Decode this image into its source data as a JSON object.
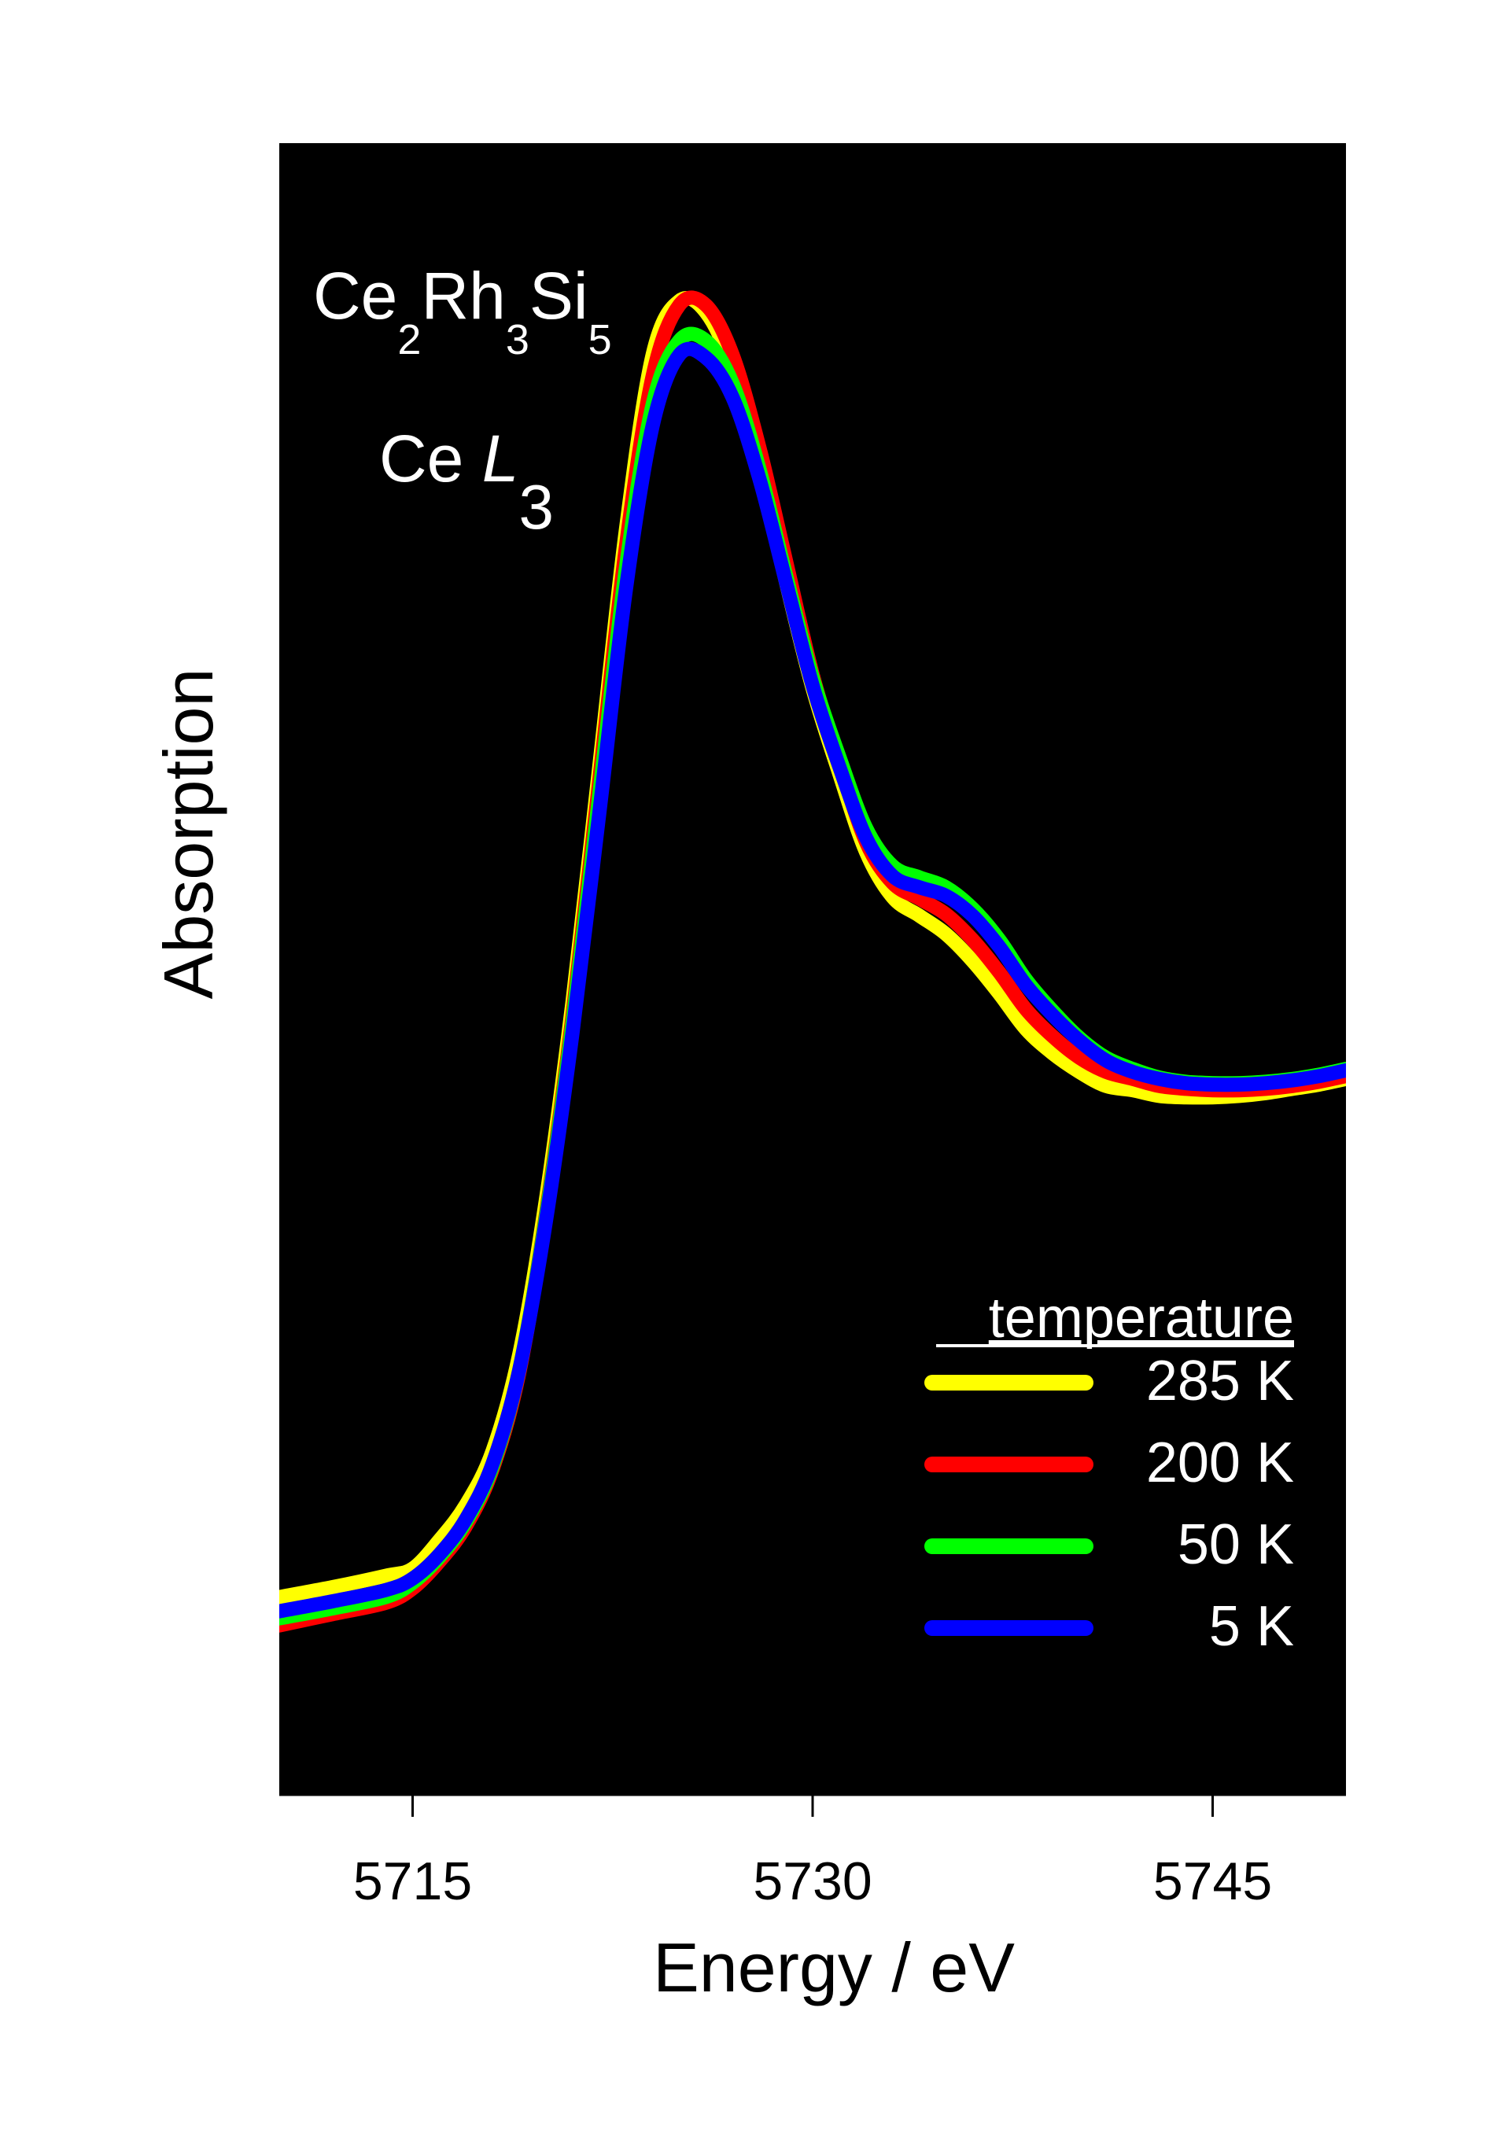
{
  "chart_data": {
    "type": "line",
    "title": "",
    "xlabel": "Energy / eV",
    "ylabel": "Absorption",
    "xlim": [
      5710,
      5750
    ],
    "ylim": [
      0,
      1
    ],
    "x_ticks": [
      5715,
      5730,
      5745
    ],
    "x_tick_labels": [
      "5715",
      "5730",
      "5745"
    ],
    "y_ticks": [],
    "plot_background": "#000000",
    "grid": false,
    "annotations": {
      "compound": {
        "base": [
          "Ce",
          "Rh",
          "Si"
        ],
        "subscripts": [
          "2",
          "3",
          "5"
        ]
      },
      "edge": {
        "element": "Ce",
        "shell": "L",
        "subscript": "3"
      }
    },
    "legend": {
      "title": "temperature",
      "placement": "bottom-right",
      "entries": [
        "285 K",
        "200 K",
        "50 K",
        "5 K"
      ]
    },
    "series": [
      {
        "name": "285 K",
        "color": "#ffff00",
        "x": [
          5710,
          5712,
          5714,
          5715,
          5716,
          5717,
          5718,
          5719,
          5720,
          5721,
          5722,
          5723,
          5724,
          5725,
          5726,
          5727,
          5728,
          5729,
          5730,
          5731,
          5732,
          5733,
          5734,
          5735,
          5736,
          5737,
          5738,
          5739,
          5740,
          5741,
          5742,
          5743,
          5744,
          5745,
          5746,
          5747,
          5748,
          5749,
          5750
        ],
        "y": [
          0.08,
          0.087,
          0.095,
          0.1,
          0.12,
          0.145,
          0.183,
          0.251,
          0.36,
          0.5,
          0.665,
          0.832,
          0.955,
          0.993,
          0.985,
          0.945,
          0.875,
          0.795,
          0.72,
          0.66,
          0.605,
          0.573,
          0.56,
          0.547,
          0.528,
          0.505,
          0.48,
          0.463,
          0.45,
          0.44,
          0.437,
          0.433,
          0.432,
          0.432,
          0.433,
          0.435,
          0.438,
          0.441,
          0.445
        ]
      },
      {
        "name": "200 K",
        "color": "#ff0000",
        "x": [
          5710,
          5712,
          5714,
          5715,
          5716,
          5717,
          5718,
          5719,
          5720,
          5721,
          5722,
          5723,
          5724,
          5725,
          5726,
          5727,
          5728,
          5729,
          5730,
          5731,
          5732,
          5733,
          5734,
          5735,
          5736,
          5737,
          5738,
          5739,
          5740,
          5741,
          5742,
          5743,
          5744,
          5745,
          5746,
          5747,
          5748,
          5749,
          5750
        ],
        "y": [
          0.06,
          0.068,
          0.076,
          0.086,
          0.105,
          0.13,
          0.17,
          0.238,
          0.35,
          0.49,
          0.655,
          0.82,
          0.94,
          0.99,
          0.99,
          0.955,
          0.89,
          0.81,
          0.73,
          0.668,
          0.612,
          0.583,
          0.572,
          0.561,
          0.543,
          0.52,
          0.494,
          0.475,
          0.46,
          0.45,
          0.445,
          0.44,
          0.438,
          0.437,
          0.437,
          0.438,
          0.44,
          0.443,
          0.447
        ]
      },
      {
        "name": "50 K",
        "color": "#00ff00",
        "x": [
          5710,
          5712,
          5714,
          5715,
          5716,
          5717,
          5718,
          5719,
          5720,
          5721,
          5722,
          5723,
          5724,
          5725,
          5726,
          5727,
          5728,
          5729,
          5730,
          5731,
          5732,
          5733,
          5734,
          5735,
          5736,
          5737,
          5738,
          5739,
          5740,
          5741,
          5742,
          5743,
          5744,
          5745,
          5746,
          5747,
          5748,
          5749,
          5750
        ],
        "y": [
          0.065,
          0.072,
          0.08,
          0.09,
          0.108,
          0.133,
          0.172,
          0.24,
          0.348,
          0.485,
          0.645,
          0.805,
          0.92,
          0.965,
          0.965,
          0.935,
          0.875,
          0.8,
          0.728,
          0.672,
          0.622,
          0.595,
          0.587,
          0.58,
          0.565,
          0.543,
          0.515,
          0.493,
          0.474,
          0.46,
          0.452,
          0.446,
          0.443,
          0.442,
          0.442,
          0.443,
          0.445,
          0.448,
          0.452
        ]
      },
      {
        "name": "5 K",
        "color": "#0000ff",
        "x": [
          5710,
          5712,
          5714,
          5715,
          5716,
          5717,
          5718,
          5719,
          5720,
          5721,
          5722,
          5723,
          5724,
          5725,
          5726,
          5727,
          5728,
          5729,
          5730,
          5731,
          5732,
          5733,
          5734,
          5735,
          5736,
          5737,
          5738,
          5739,
          5740,
          5741,
          5742,
          5743,
          5744,
          5745,
          5746,
          5747,
          5748,
          5749,
          5750
        ],
        "y": [
          0.07,
          0.077,
          0.085,
          0.093,
          0.11,
          0.135,
          0.174,
          0.24,
          0.345,
          0.478,
          0.632,
          0.79,
          0.905,
          0.955,
          0.953,
          0.925,
          0.868,
          0.795,
          0.722,
          0.665,
          0.615,
          0.588,
          0.58,
          0.574,
          0.56,
          0.538,
          0.511,
          0.49,
          0.472,
          0.458,
          0.45,
          0.445,
          0.442,
          0.441,
          0.441,
          0.442,
          0.444,
          0.447,
          0.451
        ]
      }
    ]
  }
}
